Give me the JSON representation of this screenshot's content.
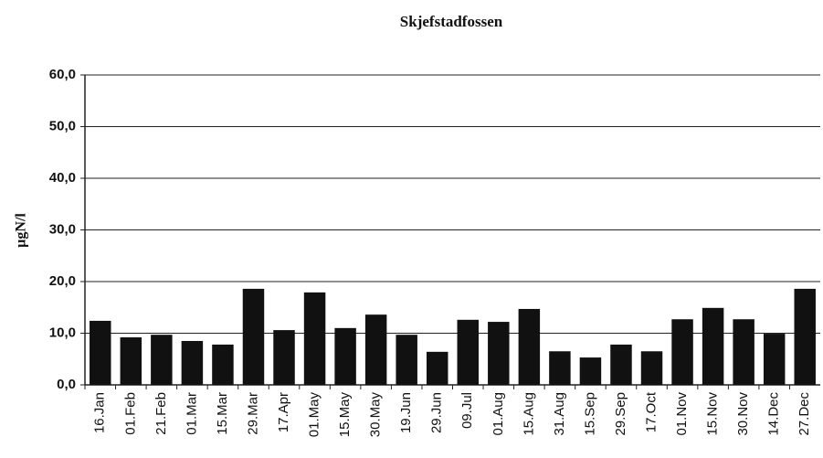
{
  "chart_data": {
    "type": "bar",
    "title": "Skjefstadfossen",
    "y_label": "µgN/l",
    "categories": [
      "16.Jan",
      "01.Feb",
      "21.Feb",
      "01.Mar",
      "15.Mar",
      "29.Mar",
      "17.Apr",
      "01.May",
      "15.May",
      "30.May",
      "19.Jun",
      "29.Jun",
      "09.Jul",
      "01.Aug",
      "15.Aug",
      "31.Aug",
      "15.Sep",
      "29.Sep",
      "17.Oct",
      "01.Nov",
      "15.Nov",
      "30.Nov",
      "14.Dec",
      "27.Dec"
    ],
    "values": [
      12.4,
      9.2,
      9.7,
      8.5,
      7.8,
      18.6,
      10.6,
      17.9,
      11.0,
      13.6,
      9.7,
      6.4,
      12.6,
      12.2,
      14.7,
      6.5,
      5.3,
      7.8,
      6.5,
      12.7,
      14.9,
      12.7,
      9.9,
      18.6
    ],
    "color": "#111111",
    "ylim": [
      0,
      60
    ],
    "yticks": [
      {
        "value": 0,
        "label": "0,0"
      },
      {
        "value": 10,
        "label": "10,0"
      },
      {
        "value": 20,
        "label": "20,0"
      },
      {
        "value": 30,
        "label": "30,0"
      },
      {
        "value": 40,
        "label": "40,0"
      },
      {
        "value": 50,
        "label": "50,0"
      },
      {
        "value": 60,
        "label": "60,0"
      }
    ],
    "grid": true
  }
}
